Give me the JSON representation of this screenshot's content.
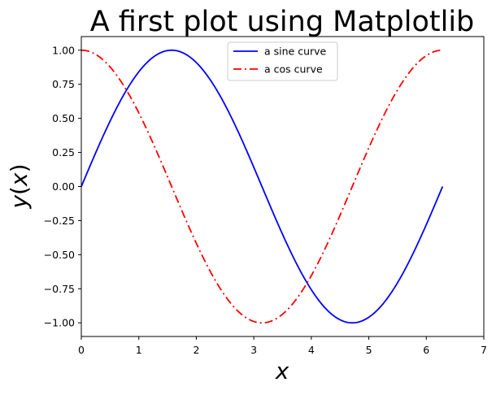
{
  "chart_data": {
    "type": "line",
    "title": "A first plot using Matplotlib",
    "xlabel": "x",
    "ylabel": "y(x)",
    "xlim": [
      0,
      7
    ],
    "ylim": [
      -1.1,
      1.1
    ],
    "xticks": [
      0,
      1,
      2,
      3,
      4,
      5,
      6,
      7
    ],
    "yticks": [
      -1.0,
      -0.75,
      -0.5,
      -0.25,
      0.0,
      0.25,
      0.5,
      0.75,
      1.0
    ],
    "xtick_labels": [
      "0",
      "1",
      "2",
      "3",
      "4",
      "5",
      "6",
      "7"
    ],
    "ytick_labels": [
      "−1.00",
      "−0.75",
      "−0.50",
      "−0.25",
      "0.00",
      "0.25",
      "0.50",
      "0.75",
      "1.00"
    ],
    "grid": false,
    "legend_position": "top-center",
    "series": [
      {
        "name": "a sine curve",
        "function": "sin",
        "x_range": [
          0,
          6.2832
        ],
        "color": "#0000ff",
        "style": "solid"
      },
      {
        "name": "a cos curve",
        "function": "cos",
        "x_range": [
          0,
          6.2832
        ],
        "color": "#ff0000",
        "style": "dashdot"
      }
    ]
  }
}
